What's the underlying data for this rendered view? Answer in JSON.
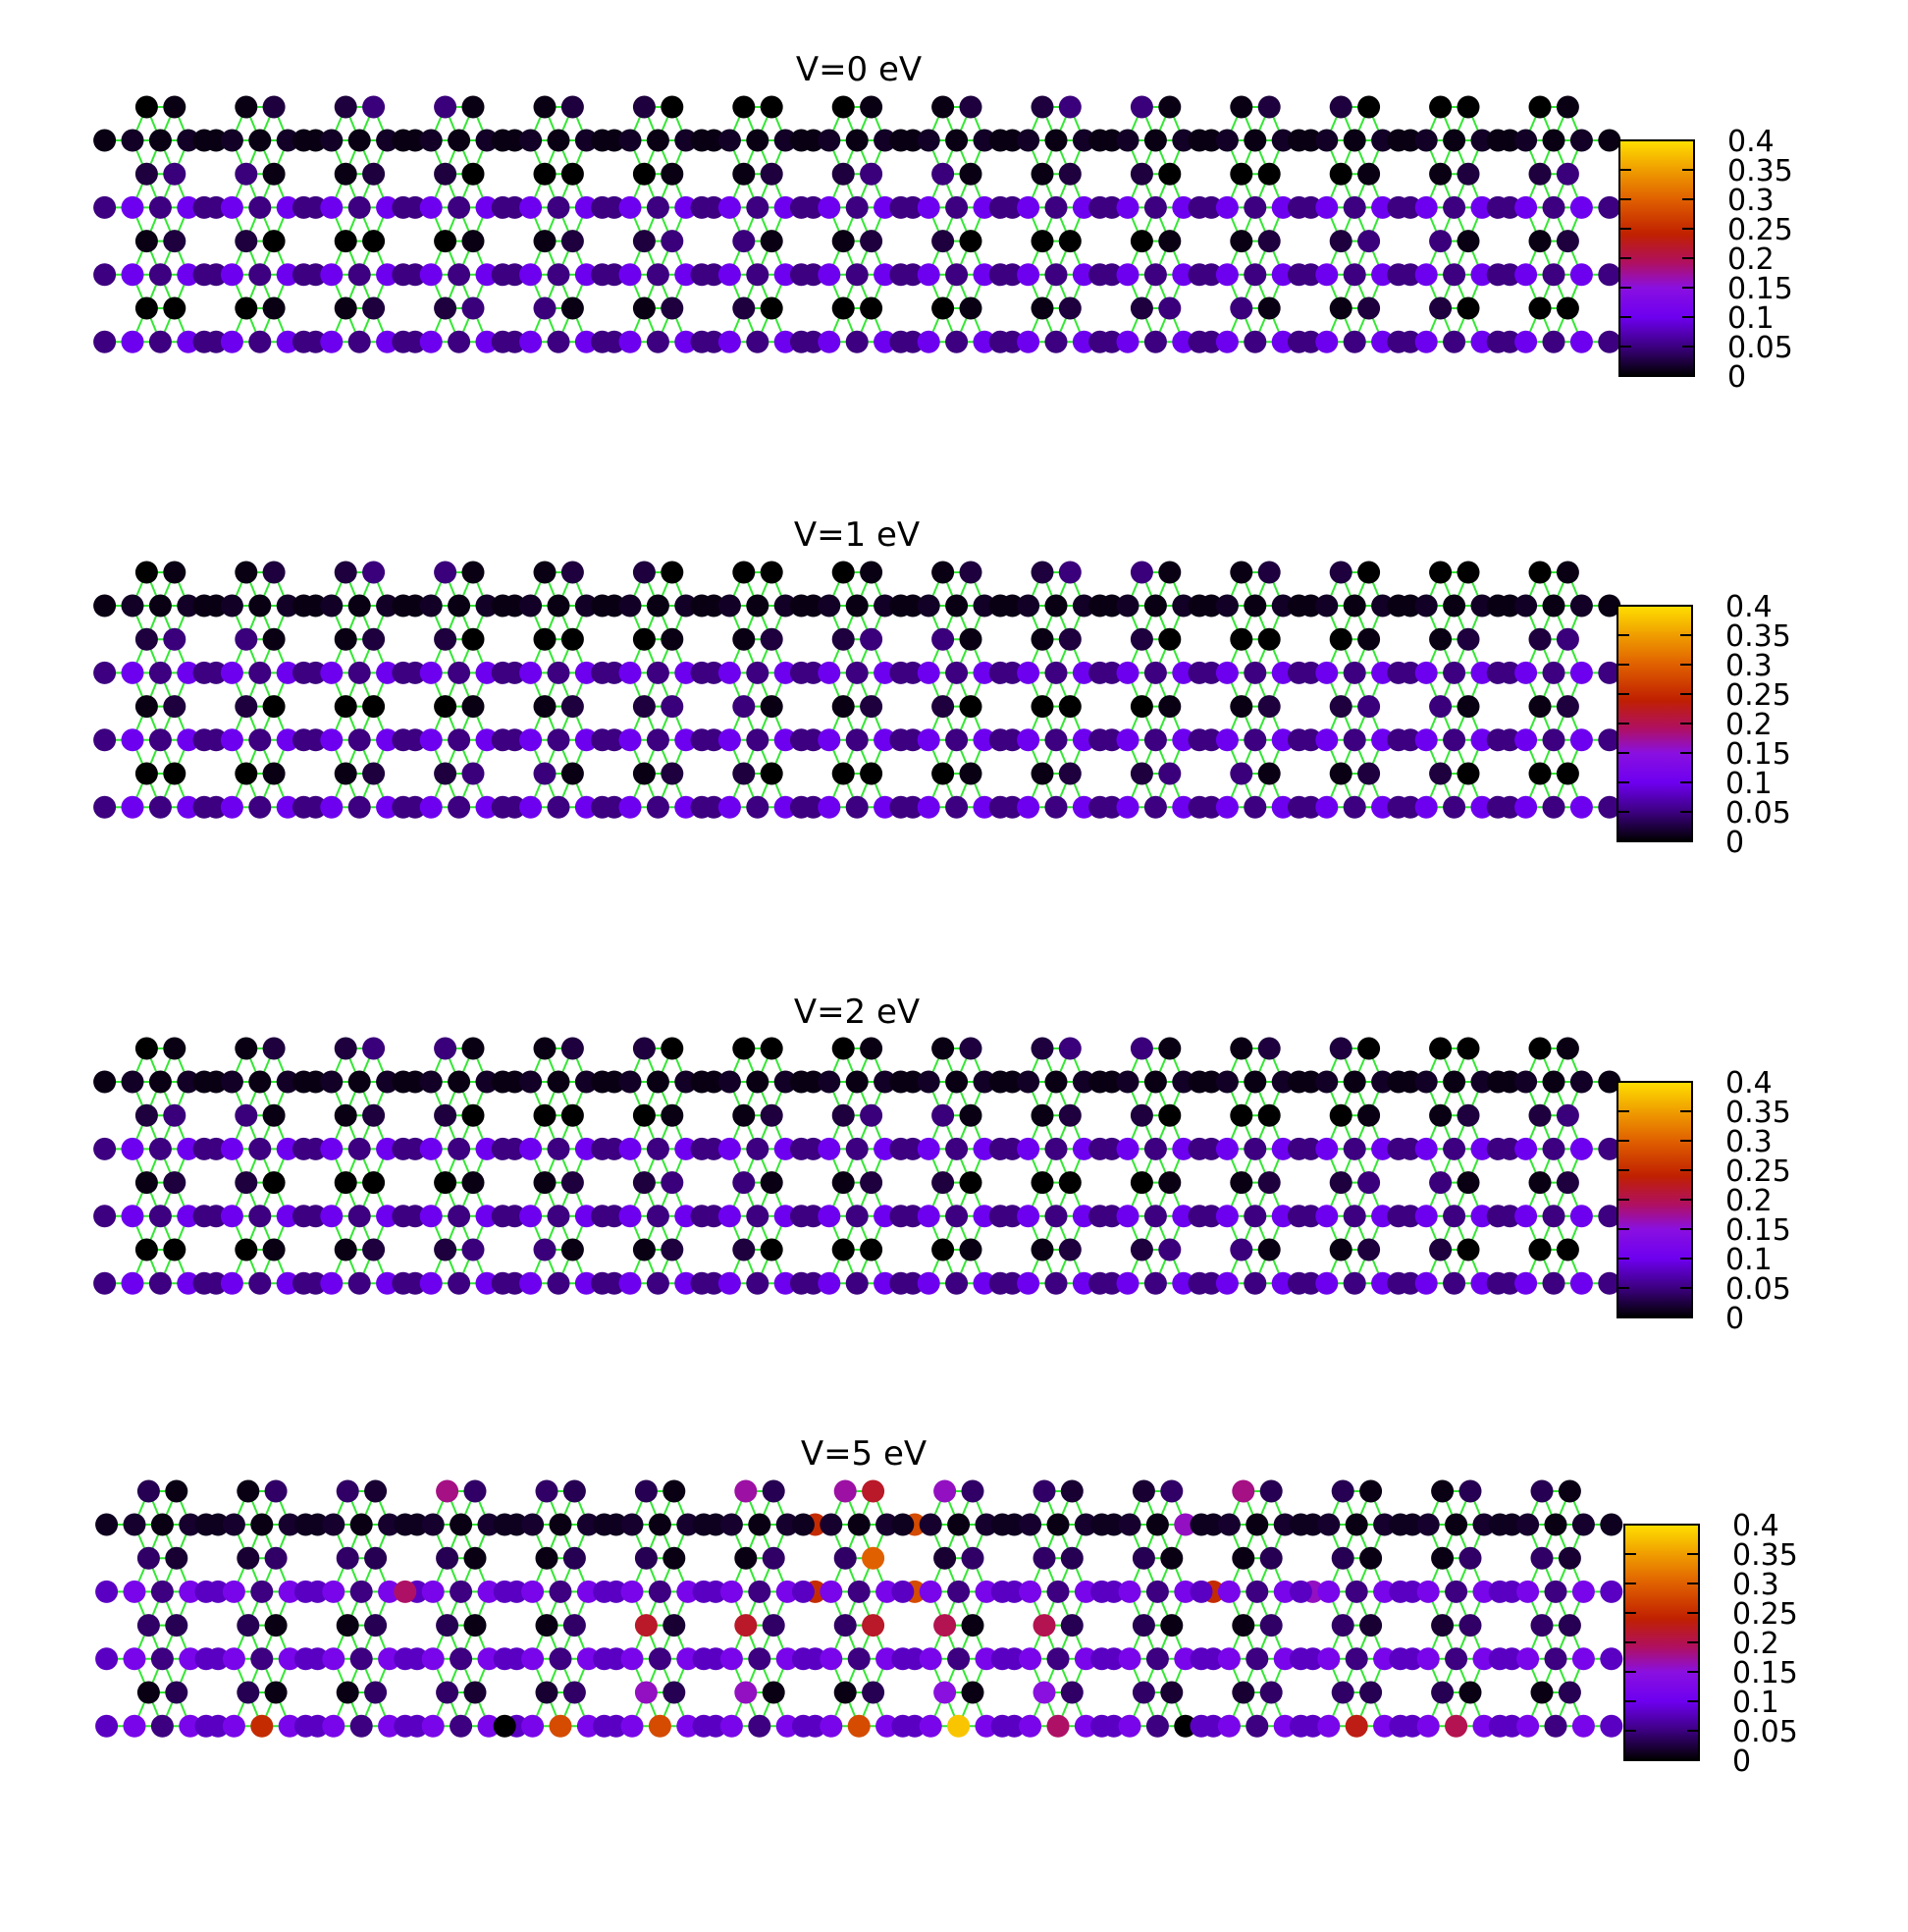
{
  "chart_data": [
    {
      "type": "heatmap",
      "title": "V=0 eV",
      "colorbar": {
        "range": [
          0,
          0.4
        ],
        "ticks": [
          "0",
          "0.05",
          "0.1",
          "0.15",
          "0.2",
          "0.25",
          "0.3",
          "0.35",
          "0.4"
        ]
      },
      "lattice": {
        "units": 15,
        "edge_values": [
          0.05,
          0.1,
          0.05,
          0.1,
          0.05
        ],
        "inner_values": [
          0.0,
          0.02,
          0.06,
          0.12,
          0.02,
          0.06,
          0.0
        ]
      },
      "highlights": []
    },
    {
      "type": "heatmap",
      "title": "V=1 eV",
      "colorbar": {
        "range": [
          0,
          0.4
        ],
        "ticks": [
          "0",
          "0.05",
          "0.1",
          "0.15",
          "0.2",
          "0.25",
          "0.3",
          "0.35",
          "0.4"
        ]
      },
      "lattice": {
        "units": 15,
        "edge_values": [
          0.05,
          0.1,
          0.05,
          0.1,
          0.05
        ],
        "inner_values": [
          0.0,
          0.02,
          0.06,
          0.12,
          0.02,
          0.06,
          0.0
        ]
      },
      "highlights": []
    },
    {
      "type": "heatmap",
      "title": "V=2 eV",
      "colorbar": {
        "range": [
          0,
          0.4
        ],
        "ticks": [
          "0",
          "0.05",
          "0.1",
          "0.15",
          "0.2",
          "0.25",
          "0.3",
          "0.35",
          "0.4"
        ]
      },
      "lattice": {
        "units": 15,
        "edge_values": [
          0.05,
          0.1,
          0.05,
          0.1,
          0.05
        ],
        "inner_values": [
          0.0,
          0.02,
          0.06,
          0.12,
          0.02,
          0.06,
          0.0
        ]
      },
      "highlights": []
    },
    {
      "type": "heatmap",
      "title": "V=5 eV",
      "colorbar": {
        "range": [
          0,
          0.4
        ],
        "ticks": [
          "0",
          "0.05",
          "0.1",
          "0.15",
          "0.2",
          "0.25",
          "0.3",
          "0.35",
          "0.4"
        ]
      },
      "lattice": {
        "units": 15,
        "edge_values": [
          0.08,
          0.12,
          0.05,
          0.12,
          0.08
        ],
        "inner_values": [
          0.08,
          0.02,
          0.1,
          0.05,
          0.1,
          0.08,
          0.02
        ]
      },
      "highlights": [
        {
          "unit": 3,
          "row": 0,
          "col": 0,
          "value": 0.18
        },
        {
          "unit": 6,
          "row": 0,
          "col": 0,
          "value": 0.17
        },
        {
          "unit": 7,
          "row": 0,
          "col": 0,
          "value": 0.17
        },
        {
          "unit": 7,
          "row": 0,
          "col": 1,
          "value": 0.22
        },
        {
          "unit": 8,
          "row": 0,
          "col": 0,
          "value": 0.16
        },
        {
          "unit": 11,
          "row": 0,
          "col": 0,
          "value": 0.18
        },
        {
          "unit": 6,
          "row": 1,
          "col": 4,
          "value": 0.25
        },
        {
          "unit": 7,
          "row": 1,
          "col": 4,
          "value": 0.28
        },
        {
          "unit": 10,
          "row": 1,
          "col": 3,
          "value": 0.16
        },
        {
          "unit": 7,
          "row": 2,
          "col": 1,
          "value": 0.3
        },
        {
          "unit": 3,
          "row": 3,
          "col": 0,
          "value": 0.19
        },
        {
          "unit": 6,
          "row": 3,
          "col": 4,
          "value": 0.25
        },
        {
          "unit": 7,
          "row": 3,
          "col": 4,
          "value": 0.28
        },
        {
          "unit": 10,
          "row": 3,
          "col": 4,
          "value": 0.25
        },
        {
          "unit": 11,
          "row": 3,
          "col": 4,
          "value": 0.16
        },
        {
          "unit": 5,
          "row": 4,
          "col": 0,
          "value": 0.22
        },
        {
          "unit": 6,
          "row": 4,
          "col": 0,
          "value": 0.22
        },
        {
          "unit": 7,
          "row": 4,
          "col": 1,
          "value": 0.22
        },
        {
          "unit": 8,
          "row": 4,
          "col": 0,
          "value": 0.2
        },
        {
          "unit": 9,
          "row": 4,
          "col": 0,
          "value": 0.2
        },
        {
          "unit": 5,
          "row": 6,
          "col": 0,
          "value": 0.16
        },
        {
          "unit": 6,
          "row": 6,
          "col": 0,
          "value": 0.16
        },
        {
          "unit": 8,
          "row": 6,
          "col": 0,
          "value": 0.15
        },
        {
          "unit": 9,
          "row": 6,
          "col": 0,
          "value": 0.15
        },
        {
          "unit": 1,
          "row": 7,
          "col": 2,
          "value": 0.25
        },
        {
          "unit": 4,
          "row": 7,
          "col": 2,
          "value": 0.28
        },
        {
          "unit": 5,
          "row": 7,
          "col": 2,
          "value": 0.28
        },
        {
          "unit": 7,
          "row": 7,
          "col": 2,
          "value": 0.28
        },
        {
          "unit": 8,
          "row": 7,
          "col": 2,
          "value": 0.38
        },
        {
          "unit": 9,
          "row": 7,
          "col": 2,
          "value": 0.19
        },
        {
          "unit": 12,
          "row": 7,
          "col": 2,
          "value": 0.23
        },
        {
          "unit": 13,
          "row": 7,
          "col": 2,
          "value": 0.2
        },
        {
          "unit": 4,
          "row": 7,
          "col": 0,
          "value": 0.0
        },
        {
          "unit": 10,
          "row": 7,
          "col": 3,
          "value": 0.0
        }
      ]
    }
  ]
}
